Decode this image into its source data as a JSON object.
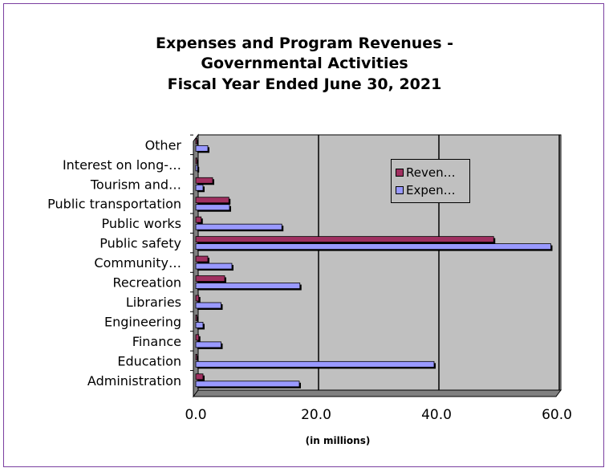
{
  "colors": {
    "revenue": "#a03060",
    "expense": "#9999ff",
    "plot_bg": "#c0c0c0",
    "frame": "#7a3fa0"
  },
  "chart_data": {
    "type": "bar",
    "orientation": "horizontal",
    "title": [
      "Expenses and Program Revenues -",
      "Governmental Activities",
      "Fiscal Year Ended June 30, 2021"
    ],
    "xlabel": "(in millions)",
    "categories": [
      "Administration",
      "Education",
      "Finance",
      "Engineering",
      "Libraries",
      "Recreation",
      "Community…",
      "Public safety",
      "Public works",
      "Public transportation",
      "Tourism and…",
      "Interest on long-…",
      "Other"
    ],
    "series": [
      {
        "name": "Reven…",
        "values": [
          1.2,
          0.2,
          0.5,
          0.1,
          0.5,
          4.8,
          2.0,
          49.5,
          0.9,
          5.5,
          2.8,
          0.2,
          0.2
        ]
      },
      {
        "name": "Expen…",
        "values": [
          17.2,
          39.6,
          4.2,
          1.2,
          4.2,
          17.3,
          6.0,
          59.0,
          14.3,
          5.6,
          1.2,
          0.3,
          2.0
        ]
      }
    ],
    "xlim": [
      0,
      60
    ],
    "xticks": [
      "0.0",
      "20.0",
      "40.0",
      "60.0"
    ],
    "legend": "top-right",
    "grid": "vertical major gridlines"
  }
}
